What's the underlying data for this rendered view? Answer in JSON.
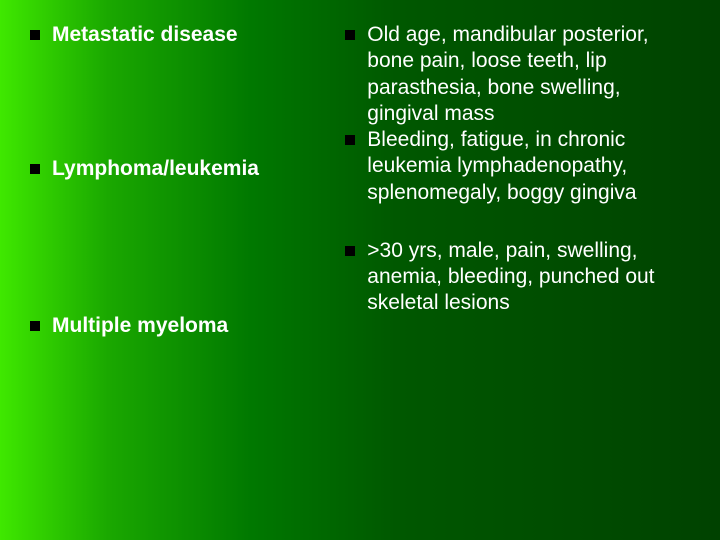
{
  "background": {
    "gradient_direction": "to right",
    "stops": [
      "#3fe800",
      "#1aa800",
      "#007800",
      "#005800",
      "#004200"
    ]
  },
  "text_color": "#ffffff",
  "bullet_color": "#000000",
  "font_family": "Arial, sans-serif",
  "body_fontsize": 21,
  "left_column": {
    "items": [
      {
        "text": "Metastatic disease",
        "bold": true
      },
      {
        "text": "Lymphoma/leukemia",
        "bold": true
      },
      {
        "text": "Multiple myeloma",
        "bold": true
      }
    ]
  },
  "right_column": {
    "items": [
      {
        "text": "Old age, mandibular posterior, bone pain, loose teeth, lip parasthesia, bone swelling, gingival mass",
        "bold": false
      },
      {
        "text": "Bleeding, fatigue, in chronic leukemia lymphadenopathy, splenomegaly, boggy gingiva",
        "bold": false
      },
      {
        "text": ">30 yrs, male, pain, swelling, anemia, bleeding, punched out skeletal lesions",
        "bold": false
      }
    ]
  }
}
